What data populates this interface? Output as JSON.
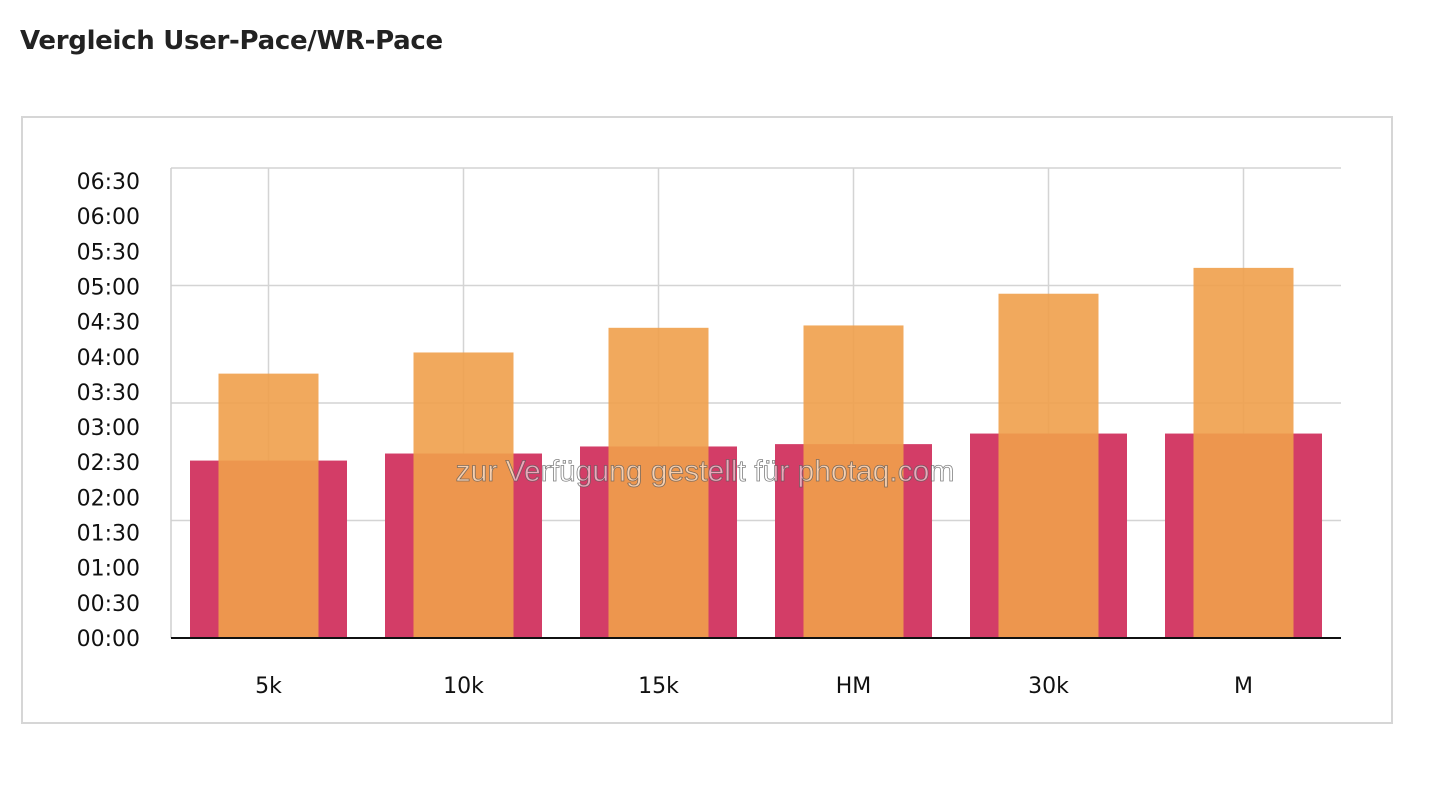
{
  "page": {
    "title": "Vergleich User-Pace/WR-Pace"
  },
  "watermark": "zur Verfügung gestellt für photaq.com",
  "chart_data": {
    "type": "bar",
    "title": "",
    "xlabel": "",
    "ylabel": "",
    "categories": [
      "5k",
      "10k",
      "15k",
      "HM",
      "30k",
      "M"
    ],
    "series": [
      {
        "values_seconds": [
          151,
          157,
          163,
          165,
          174,
          174
        ],
        "values": [
          "02:31",
          "02:37",
          "02:43",
          "02:45",
          "02:54",
          "02:54"
        ],
        "color": "#d33d67"
      },
      {
        "values_seconds": [
          225,
          243,
          264,
          266,
          293,
          315
        ],
        "values": [
          "03:45",
          "04:03",
          "04:24",
          "04:26",
          "04:53",
          "05:15"
        ],
        "color": "#f0a04b"
      }
    ],
    "yticks": [
      "00:00",
      "00:30",
      "01:00",
      "01:30",
      "02:00",
      "02:30",
      "03:00",
      "03:30",
      "04:00",
      "04:30",
      "05:00",
      "05:30",
      "06:00",
      "06:30"
    ],
    "ylim_seconds": [
      0,
      400
    ],
    "grid": true,
    "legend": "none"
  }
}
